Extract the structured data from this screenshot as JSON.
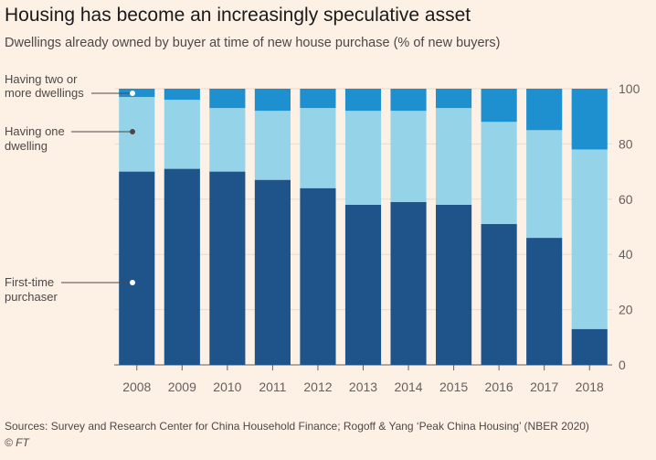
{
  "chart_data": {
    "type": "bar",
    "stacked": true,
    "title": "Housing has become an increasingly speculative asset",
    "subtitle": "Dwellings already owned by buyer at time of new house purchase (% of new buyers)",
    "categories": [
      "2008",
      "2009",
      "2010",
      "2011",
      "2012",
      "2013",
      "2014",
      "2015",
      "2016",
      "2017",
      "2018"
    ],
    "series": [
      {
        "name": "First-time purchaser",
        "color": "#1f548b",
        "values": [
          70,
          71,
          70,
          67,
          64,
          58,
          59,
          58,
          51,
          46,
          13
        ]
      },
      {
        "name": "Having one dwelling",
        "color": "#95d3e9",
        "values": [
          27,
          25,
          23,
          25,
          29,
          34,
          33,
          35,
          37,
          39,
          65
        ]
      },
      {
        "name": "Having two or more dwellings",
        "color": "#1e8fcf",
        "values": [
          3,
          4,
          7,
          8,
          7,
          8,
          8,
          7,
          12,
          15,
          22
        ]
      }
    ],
    "ylim": [
      0,
      100
    ],
    "yticks": [
      0,
      20,
      40,
      60,
      80,
      100
    ],
    "yaxis_position": "right",
    "grid": true,
    "source": "Sources: Survey and Research Center for China Household Finance; Rogoff & Yang ‘Peak China Housing’ (NBER 2020)",
    "credit": "© FT"
  }
}
